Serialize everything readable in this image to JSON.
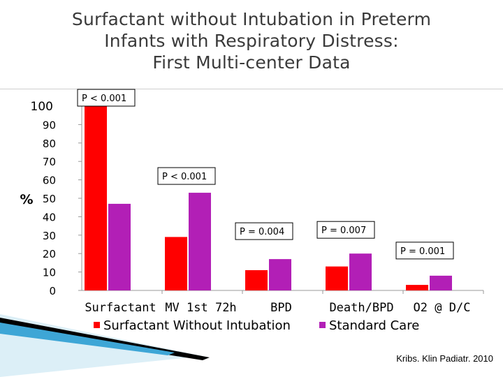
{
  "slide": {
    "title_lines": [
      "Surfactant without Intubation in Preterm",
      "Infants with Respiratory Distress:",
      "First Multi-center Data"
    ],
    "citation": "Kribs. Klin Padiatr. 2010"
  },
  "chart_data": {
    "type": "bar",
    "title": "",
    "xlabel": "",
    "ylabel": "%",
    "ylim": [
      0,
      100
    ],
    "yticks": [
      0,
      10,
      20,
      30,
      40,
      50,
      60,
      70,
      80,
      90,
      100
    ],
    "categories": [
      "Surfactant",
      "MV 1st 72h",
      "BPD",
      "Death/BPD",
      "O2 @ D/C"
    ],
    "series": [
      {
        "name": "Surfactant Without Intubation",
        "color": "#ff0000",
        "values": [
          100,
          29,
          11,
          13,
          3
        ]
      },
      {
        "name": "Standard Care",
        "color": "#b21fb6",
        "values": [
          47,
          53,
          17,
          20,
          8
        ]
      }
    ],
    "annotations": [
      "P < 0.001",
      "P < 0.001",
      "P = 0.004",
      "P = 0.007",
      "P = 0.001"
    ],
    "legend_position": "bottom",
    "grid": false
  }
}
